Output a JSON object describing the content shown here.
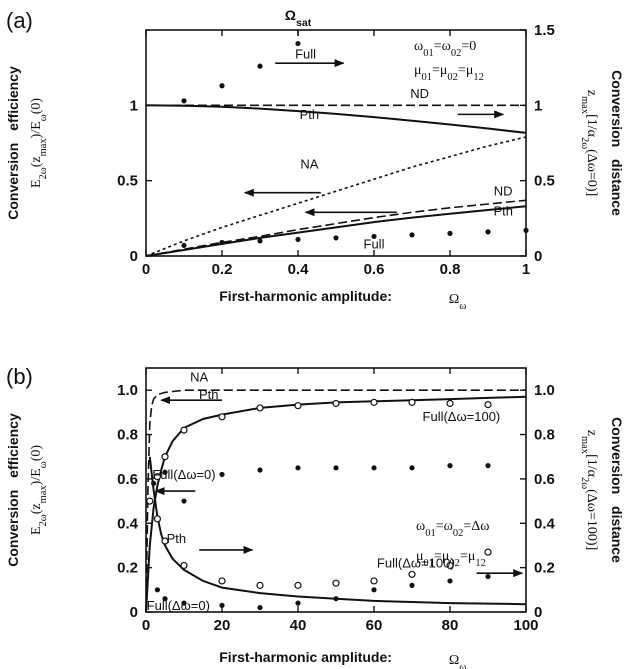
{
  "chart_data": [
    {
      "panel_label": "(a)",
      "type": "line",
      "top_label": "Ω_sat",
      "xlabel": "First-harmonic amplitude:",
      "xlabel_symbol": "Ω_ω",
      "ylabel_left": "Conversion efficiency",
      "ylabel_left_expr": "E_2ω(z_max)/E_ω(0)",
      "ylabel_right": "Conversion distance",
      "ylabel_right_expr": "z_max[1/α_2ω(Δω=0)]",
      "xlim": [
        0,
        1
      ],
      "ylim_left": [
        0,
        1.5
      ],
      "ylim_right": [
        0,
        1.5
      ],
      "x_ticks": [
        "0",
        "0.2",
        "0.4",
        "0.6",
        "0.8",
        "1"
      ],
      "x_tick_values": [
        0,
        0.2,
        0.4,
        0.6,
        0.8,
        1
      ],
      "y_ticks_left": [
        "0",
        "0.5",
        "1"
      ],
      "y_tick_values_left": [
        0,
        0.5,
        1
      ],
      "y_ticks_right": [
        "0",
        "0.5",
        "1",
        "1.5"
      ],
      "y_tick_values_right": [
        0,
        0.5,
        1,
        1.5
      ],
      "legend_lines": [
        "ω01=ω02=0",
        "μ01=μ02=μ12"
      ],
      "series": [
        {
          "name": "Pth",
          "axis": "right",
          "style": "solid",
          "x": [
            0,
            0.1,
            0.2,
            0.3,
            0.4,
            0.5,
            0.6,
            0.7,
            0.8,
            0.9,
            1.0
          ],
          "y": [
            1.0,
            0.997,
            0.99,
            0.978,
            0.962,
            0.943,
            0.922,
            0.898,
            0.873,
            0.846,
            0.817
          ]
        },
        {
          "name": "ND",
          "axis": "right",
          "style": "dashed",
          "x": [
            0,
            1
          ],
          "y": [
            1.0,
            1.0
          ]
        },
        {
          "name": "Full",
          "axis": "right",
          "style": "dots-filled",
          "x": [
            0.1,
            0.2,
            0.3,
            0.4
          ],
          "y": [
            1.03,
            1.13,
            1.26,
            1.41
          ]
        },
        {
          "name": "NA",
          "axis": "left",
          "style": "dotted",
          "x": [
            0,
            0.1,
            0.2,
            0.3,
            0.4,
            0.5,
            0.6,
            0.7,
            0.8,
            0.9,
            1.0
          ],
          "y": [
            0,
            0.1,
            0.19,
            0.27,
            0.35,
            0.43,
            0.51,
            0.59,
            0.66,
            0.73,
            0.79
          ]
        },
        {
          "name": "ND",
          "axis": "left",
          "style": "dashed",
          "x": [
            0,
            0.1,
            0.2,
            0.3,
            0.4,
            0.5,
            0.6,
            0.7,
            0.8,
            0.9,
            1.0
          ],
          "y": [
            0,
            0.045,
            0.09,
            0.13,
            0.175,
            0.215,
            0.255,
            0.29,
            0.32,
            0.345,
            0.37
          ]
        },
        {
          "name": "Pth",
          "axis": "left",
          "style": "solid",
          "x": [
            0,
            0.1,
            0.2,
            0.3,
            0.4,
            0.5,
            0.6,
            0.7,
            0.8,
            0.9,
            1.0
          ],
          "y": [
            0,
            0.04,
            0.08,
            0.12,
            0.155,
            0.19,
            0.225,
            0.255,
            0.28,
            0.305,
            0.33
          ]
        },
        {
          "name": "Full",
          "axis": "left",
          "style": "dots-filled",
          "x": [
            0.1,
            0.2,
            0.3,
            0.4,
            0.5,
            0.6,
            0.7,
            0.8,
            0.9,
            1.0
          ],
          "y": [
            0.07,
            0.09,
            0.1,
            0.11,
            0.12,
            0.13,
            0.14,
            0.15,
            0.16,
            0.17
          ]
        }
      ],
      "annotations": [
        {
          "text": "Full",
          "x": 0.42,
          "y": 1.31
        },
        {
          "text": "ND",
          "x": 0.72,
          "y": 1.05
        },
        {
          "text": "Pth",
          "x": 0.43,
          "y": 0.91
        },
        {
          "text": "NA",
          "x": 0.43,
          "y": 0.58
        },
        {
          "text": "ND",
          "x": 0.94,
          "y": 0.4
        },
        {
          "text": "Pth",
          "x": 0.94,
          "y": 0.27
        },
        {
          "text": "Full",
          "x": 0.6,
          "y": 0.05
        }
      ],
      "arrows": [
        {
          "x1": 0.34,
          "y1": 1.28,
          "x2": 0.52,
          "y2": 1.28
        },
        {
          "x1": 0.82,
          "y1": 0.94,
          "x2": 0.94,
          "y2": 0.94
        },
        {
          "x1": 0.46,
          "y1": 0.42,
          "x2": 0.26,
          "y2": 0.42
        },
        {
          "x1": 0.66,
          "y1": 0.29,
          "x2": 0.42,
          "y2": 0.29
        }
      ]
    },
    {
      "panel_label": "(b)",
      "type": "line",
      "xlabel": "First-harmonic amplitude:",
      "xlabel_symbol": "Ω_ω",
      "ylabel_left": "Conversion efficiency",
      "ylabel_left_expr": "E_2ω(z_max)/E_ω(0)",
      "ylabel_right": "Conversion distance",
      "ylabel_right_expr": "z_max[1/α_2ω(Δω=100)]",
      "xlim": [
        0,
        100
      ],
      "ylim_left": [
        0,
        1.1
      ],
      "ylim_right": [
        0,
        1.1
      ],
      "x_ticks": [
        "0",
        "20",
        "40",
        "60",
        "80",
        "100"
      ],
      "x_tick_values": [
        0,
        20,
        40,
        60,
        80,
        100
      ],
      "y_ticks_left": [
        "0",
        "0.2",
        "0.4",
        "0.6",
        "0.8",
        "1.0"
      ],
      "y_tick_values_left": [
        0,
        0.2,
        0.4,
        0.6,
        0.8,
        1.0
      ],
      "y_ticks_right": [
        "0",
        "0.2",
        "0.4",
        "0.6",
        "0.8",
        "1.0"
      ],
      "y_tick_values_right": [
        0,
        0.2,
        0.4,
        0.6,
        0.8,
        1.0
      ],
      "legend_lines": [
        "ω01=ω02=Δω",
        "μ01=μ02=μ12"
      ],
      "series": [
        {
          "name": "NA",
          "axis": "left",
          "style": "dashed",
          "x": [
            0,
            0.5,
            1,
            1.5,
            2,
            3,
            5,
            10,
            20,
            50,
            100
          ],
          "y": [
            0,
            0.55,
            0.85,
            0.93,
            0.96,
            0.98,
            0.99,
            1.0,
            1.0,
            1.0,
            1.0
          ]
        },
        {
          "name": "Pth",
          "axis": "left",
          "style": "solid",
          "x": [
            0,
            1,
            2,
            3,
            4,
            5,
            7,
            10,
            15,
            20,
            30,
            40,
            50,
            60,
            70,
            80,
            90,
            100
          ],
          "y": [
            0,
            0.3,
            0.47,
            0.57,
            0.64,
            0.7,
            0.77,
            0.83,
            0.87,
            0.89,
            0.92,
            0.935,
            0.945,
            0.95,
            0.955,
            0.96,
            0.965,
            0.97
          ]
        },
        {
          "name": "Full(Δω=100)",
          "axis": "left",
          "style": "dots-open",
          "x": [
            1,
            3,
            5,
            10,
            20,
            30,
            40,
            50,
            60,
            70,
            80,
            90
          ],
          "y": [
            0.5,
            0.61,
            0.7,
            0.82,
            0.88,
            0.92,
            0.93,
            0.94,
            0.945,
            0.945,
            0.94,
            0.935
          ]
        },
        {
          "name": "Full(Δω=0)",
          "axis": "left",
          "style": "dots-filled",
          "x": [
            2,
            5,
            10,
            20,
            30,
            40,
            50,
            60,
            70,
            80,
            90
          ],
          "y": [
            0.58,
            0.63,
            0.5,
            0.62,
            0.64,
            0.65,
            0.65,
            0.65,
            0.65,
            0.66,
            0.66
          ]
        },
        {
          "name": "Pth",
          "axis": "right",
          "style": "solid",
          "x": [
            1,
            2,
            3,
            4,
            5,
            7,
            10,
            15,
            20,
            30,
            40,
            50,
            60,
            70,
            80,
            90,
            100
          ],
          "y": [
            0.7,
            0.55,
            0.43,
            0.35,
            0.3,
            0.24,
            0.19,
            0.14,
            0.11,
            0.085,
            0.07,
            0.06,
            0.05,
            0.045,
            0.04,
            0.038,
            0.035
          ]
        },
        {
          "name": "Full(Δω=100)",
          "axis": "right",
          "style": "dots-open",
          "x": [
            3,
            5,
            10,
            20,
            30,
            40,
            50,
            60,
            70,
            80,
            90
          ],
          "y": [
            0.42,
            0.32,
            0.21,
            0.14,
            0.12,
            0.12,
            0.13,
            0.14,
            0.17,
            0.21,
            0.27
          ]
        },
        {
          "name": "Full(Δω=0)",
          "axis": "right",
          "style": "dots-filled",
          "x": [
            3,
            5,
            10,
            20,
            30,
            40,
            50,
            60,
            70,
            80,
            90
          ],
          "y": [
            0.1,
            0.06,
            0.04,
            0.03,
            0.02,
            0.04,
            0.06,
            0.1,
            0.12,
            0.14,
            0.16
          ]
        }
      ],
      "annotations": [
        {
          "text": "NA",
          "x": 14,
          "y": 1.04
        },
        {
          "text": "Pth",
          "x": 16.5,
          "y": 0.96
        },
        {
          "text": "Full(Δω=100)",
          "x": 83,
          "y": 0.86
        },
        {
          "text": "Full(Δω=0)",
          "x": 10,
          "y": 0.6
        },
        {
          "text": "Pth",
          "x": 8,
          "y": 0.31
        },
        {
          "text": "Full(Δω=100)",
          "x": 71,
          "y": 0.2
        },
        {
          "text": "Full(Δω=0)",
          "x": 8.5,
          "y": 0.01
        }
      ],
      "arrows": [
        {
          "x1": 20,
          "y1": 0.955,
          "x2": 4,
          "y2": 0.955
        },
        {
          "x1": 13,
          "y1": 0.545,
          "x2": 2.5,
          "y2": 0.545
        },
        {
          "x1": 14,
          "y1": 0.28,
          "x2": 28,
          "y2": 0.28
        },
        {
          "x1": 87,
          "y1": 0.175,
          "x2": 99,
          "y2": 0.175
        }
      ]
    }
  ]
}
